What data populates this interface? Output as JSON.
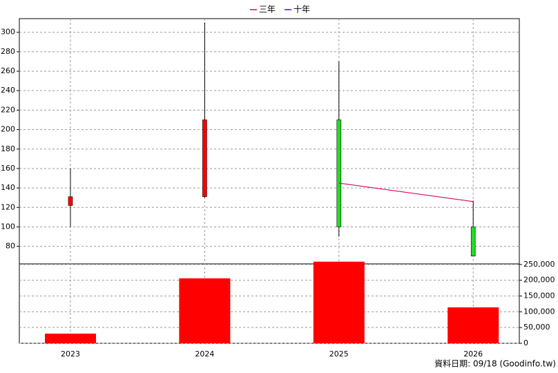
{
  "chart_data": {
    "type": "candlestick",
    "categories": [
      "2023",
      "2024",
      "2025",
      "2026"
    ],
    "open": [
      122,
      131,
      210,
      100
    ],
    "high": [
      160,
      310,
      270,
      127
    ],
    "low": [
      100,
      130,
      90,
      70
    ],
    "close": [
      131,
      210,
      100,
      70
    ],
    "up_color": "#ff0000",
    "down_color": "#22dd22",
    "series": [
      {
        "name": "三年",
        "color": "#dd0066",
        "values": [
          null,
          null,
          145,
          126
        ]
      },
      {
        "name": "十年",
        "color": "#6600cc",
        "values": [
          null,
          null,
          null,
          null
        ]
      }
    ],
    "ylim": [
      62,
      314
    ],
    "yticks": [
      80,
      100,
      120,
      140,
      160,
      180,
      200,
      220,
      240,
      260,
      280,
      300
    ],
    "grid": true,
    "volume": {
      "color": "#ff0000",
      "values": [
        30700,
        206000,
        259000,
        114000
      ],
      "ylim": [
        0,
        252000
      ],
      "yticks": [
        0,
        {
          "value": 50000,
          "label": "50,000"
        },
        {
          "value": 100000,
          "label": "100,000"
        },
        {
          "value": 150000,
          "label": "150,000"
        },
        {
          "value": 200000,
          "label": "200,000"
        },
        {
          "value": 250000,
          "label": "250,000"
        }
      ]
    },
    "note": "資料日期: 09/18  (Goodinfo.tw)"
  }
}
